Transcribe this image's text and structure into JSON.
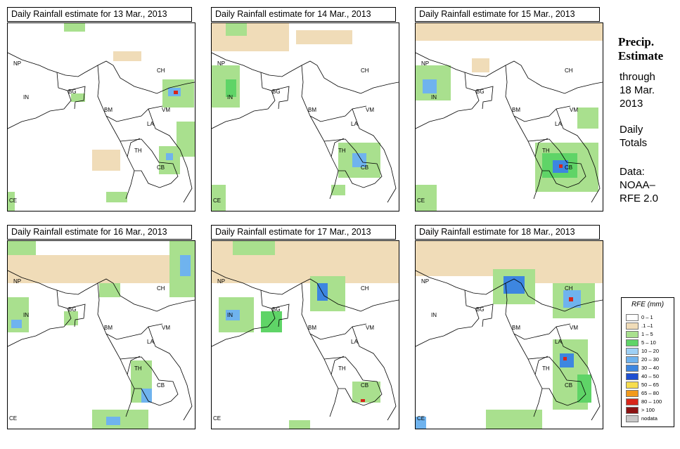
{
  "panels": [
    {
      "title": "Daily Rainfall estimate for  13 Mar., 2013"
    },
    {
      "title": "Daily Rainfall estimate for  14 Mar., 2013"
    },
    {
      "title": "Daily Rainfall estimate for  15 Mar., 2013"
    },
    {
      "title": "Daily Rainfall estimate for  16 Mar., 2013"
    },
    {
      "title": "Daily Rainfall estimate for  17 Mar., 2013"
    },
    {
      "title": "Daily Rainfall estimate for  18 Mar., 2013"
    }
  ],
  "country_labels": {
    "np": "NP",
    "in": "IN",
    "bg": "BG",
    "bm": "BM",
    "ch": "CH",
    "vm": "VM",
    "la": "LA",
    "th": "TH",
    "cb": "CB",
    "ce": "CE"
  },
  "sidebar": {
    "title_line1": "Precip.",
    "title_line2": "Estimate",
    "through": "through",
    "date_line1": "18 Mar.",
    "date_line2": "2013",
    "daily": "Daily",
    "totals": "Totals",
    "data_label": "Data:",
    "data_source1": "NOAA–",
    "data_source2": "RFE 2.0"
  },
  "legend": {
    "title": "RFE (mm)",
    "items": [
      {
        "label": "0 – 1",
        "color": "#ffffff"
      },
      {
        "label": ".1 –1",
        "color": "#f0dcb8"
      },
      {
        "label": "1 – 5",
        "color": "#a9e08e"
      },
      {
        "label": "5 – 10",
        "color": "#5fd467"
      },
      {
        "label": "10 – 20",
        "color": "#9ed0f5"
      },
      {
        "label": "20 – 30",
        "color": "#6fb3ee"
      },
      {
        "label": "30 – 40",
        "color": "#3d86e0"
      },
      {
        "label": "40 – 50",
        "color": "#1f4fd1"
      },
      {
        "label": "50 – 65",
        "color": "#f7dd4e"
      },
      {
        "label": "65 – 80",
        "color": "#f29a1c"
      },
      {
        "label": "80 – 100",
        "color": "#d8261a"
      },
      {
        "label": "> 100",
        "color": "#8b1313"
      },
      {
        "label": "nodata",
        "color": "#c9c9c9"
      }
    ]
  }
}
